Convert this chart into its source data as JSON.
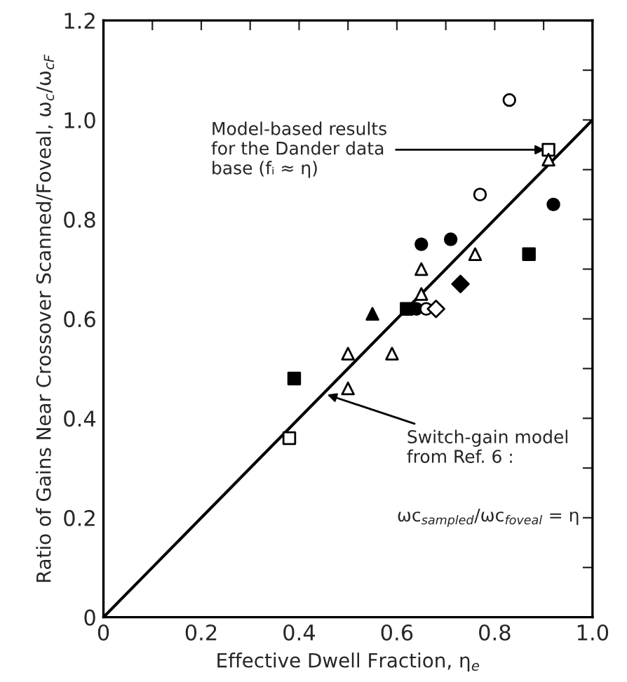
{
  "chart_data": {
    "type": "scatter",
    "xlabel": "Effective Dwell Fraction, η$_{e}$",
    "ylabel": "Ratio of Gains Near Crossover Scanned/Foveal, ω$_{c}$/ω$_{cF}$",
    "xlim": [
      0,
      1.0
    ],
    "ylim": [
      0,
      1.2
    ],
    "xticks": [
      0,
      {
        "value": 0.1,
        "label": null
      },
      0.2,
      {
        "value": 0.3,
        "label": null
      },
      0.4,
      {
        "value": 0.5,
        "label": null
      },
      0.6,
      {
        "value": 0.7,
        "label": null
      },
      0.8,
      {
        "value": 0.9,
        "label": null
      },
      {
        "value": 1.0,
        "label": "1.0"
      }
    ],
    "yticks": [
      0,
      {
        "value": 0.1,
        "label": null
      },
      0.2,
      {
        "value": 0.3,
        "label": null
      },
      0.4,
      {
        "value": 0.5,
        "label": null
      },
      0.6,
      {
        "value": 0.7,
        "label": null
      },
      0.8,
      {
        "value": 0.9,
        "label": null
      },
      {
        "value": 1.0,
        "label": "1.0"
      },
      {
        "value": 1.1,
        "label": null
      },
      1.2
    ],
    "grid": false,
    "legend": false,
    "series": [
      {
        "type": "line",
        "color": "#000000",
        "marker": "none",
        "line_style": "solid",
        "x": [
          0,
          1.0
        ],
        "values": [
          0,
          1.0
        ]
      },
      {
        "color": "#ffffff",
        "marker": "circle",
        "x": [
          0.83,
          0.77,
          0.66
        ],
        "values": [
          1.04,
          0.85,
          0.62
        ]
      },
      {
        "color": "#000000",
        "marker": "circle",
        "x": [
          0.92,
          0.71,
          0.65,
          0.64
        ],
        "values": [
          0.83,
          0.76,
          0.75,
          0.62
        ]
      },
      {
        "color": "#ffffff",
        "marker": "square",
        "x": [
          0.91,
          0.38
        ],
        "values": [
          0.94,
          0.36
        ]
      },
      {
        "color": "#000000",
        "marker": "square",
        "x": [
          0.87,
          0.62,
          0.39
        ],
        "values": [
          0.73,
          0.62,
          0.48
        ]
      },
      {
        "color": "#ffffff",
        "marker": "triangle",
        "x": [
          0.91,
          0.65,
          0.59,
          0.76,
          0.65,
          0.5,
          0.5
        ],
        "values": [
          0.92,
          0.7,
          0.53,
          0.73,
          0.65,
          0.53,
          0.46
        ]
      },
      {
        "color": "#000000",
        "marker": "triangle",
        "x": [
          0.55
        ],
        "values": [
          0.61
        ]
      },
      {
        "color": "#ffffff",
        "marker": "diamond",
        "x": [
          0.68
        ],
        "values": [
          0.62
        ]
      },
      {
        "color": "#000000",
        "marker": "diamond",
        "x": [
          0.73
        ],
        "values": [
          0.67
        ]
      }
    ],
    "annotations": [
      {
        "text": "Model-based results\nfor the Dander data\nbase (fᵢ ≈ η)",
        "x": 0.91,
        "y": 0.94
      },
      {
        "text": "Switch-gain model\nfrom Ref. 6 :",
        "x": 0.45,
        "y": 0.45
      },
      "ωc$_{sampled}$/ωc$_{foveal}$ = η"
    ]
  }
}
